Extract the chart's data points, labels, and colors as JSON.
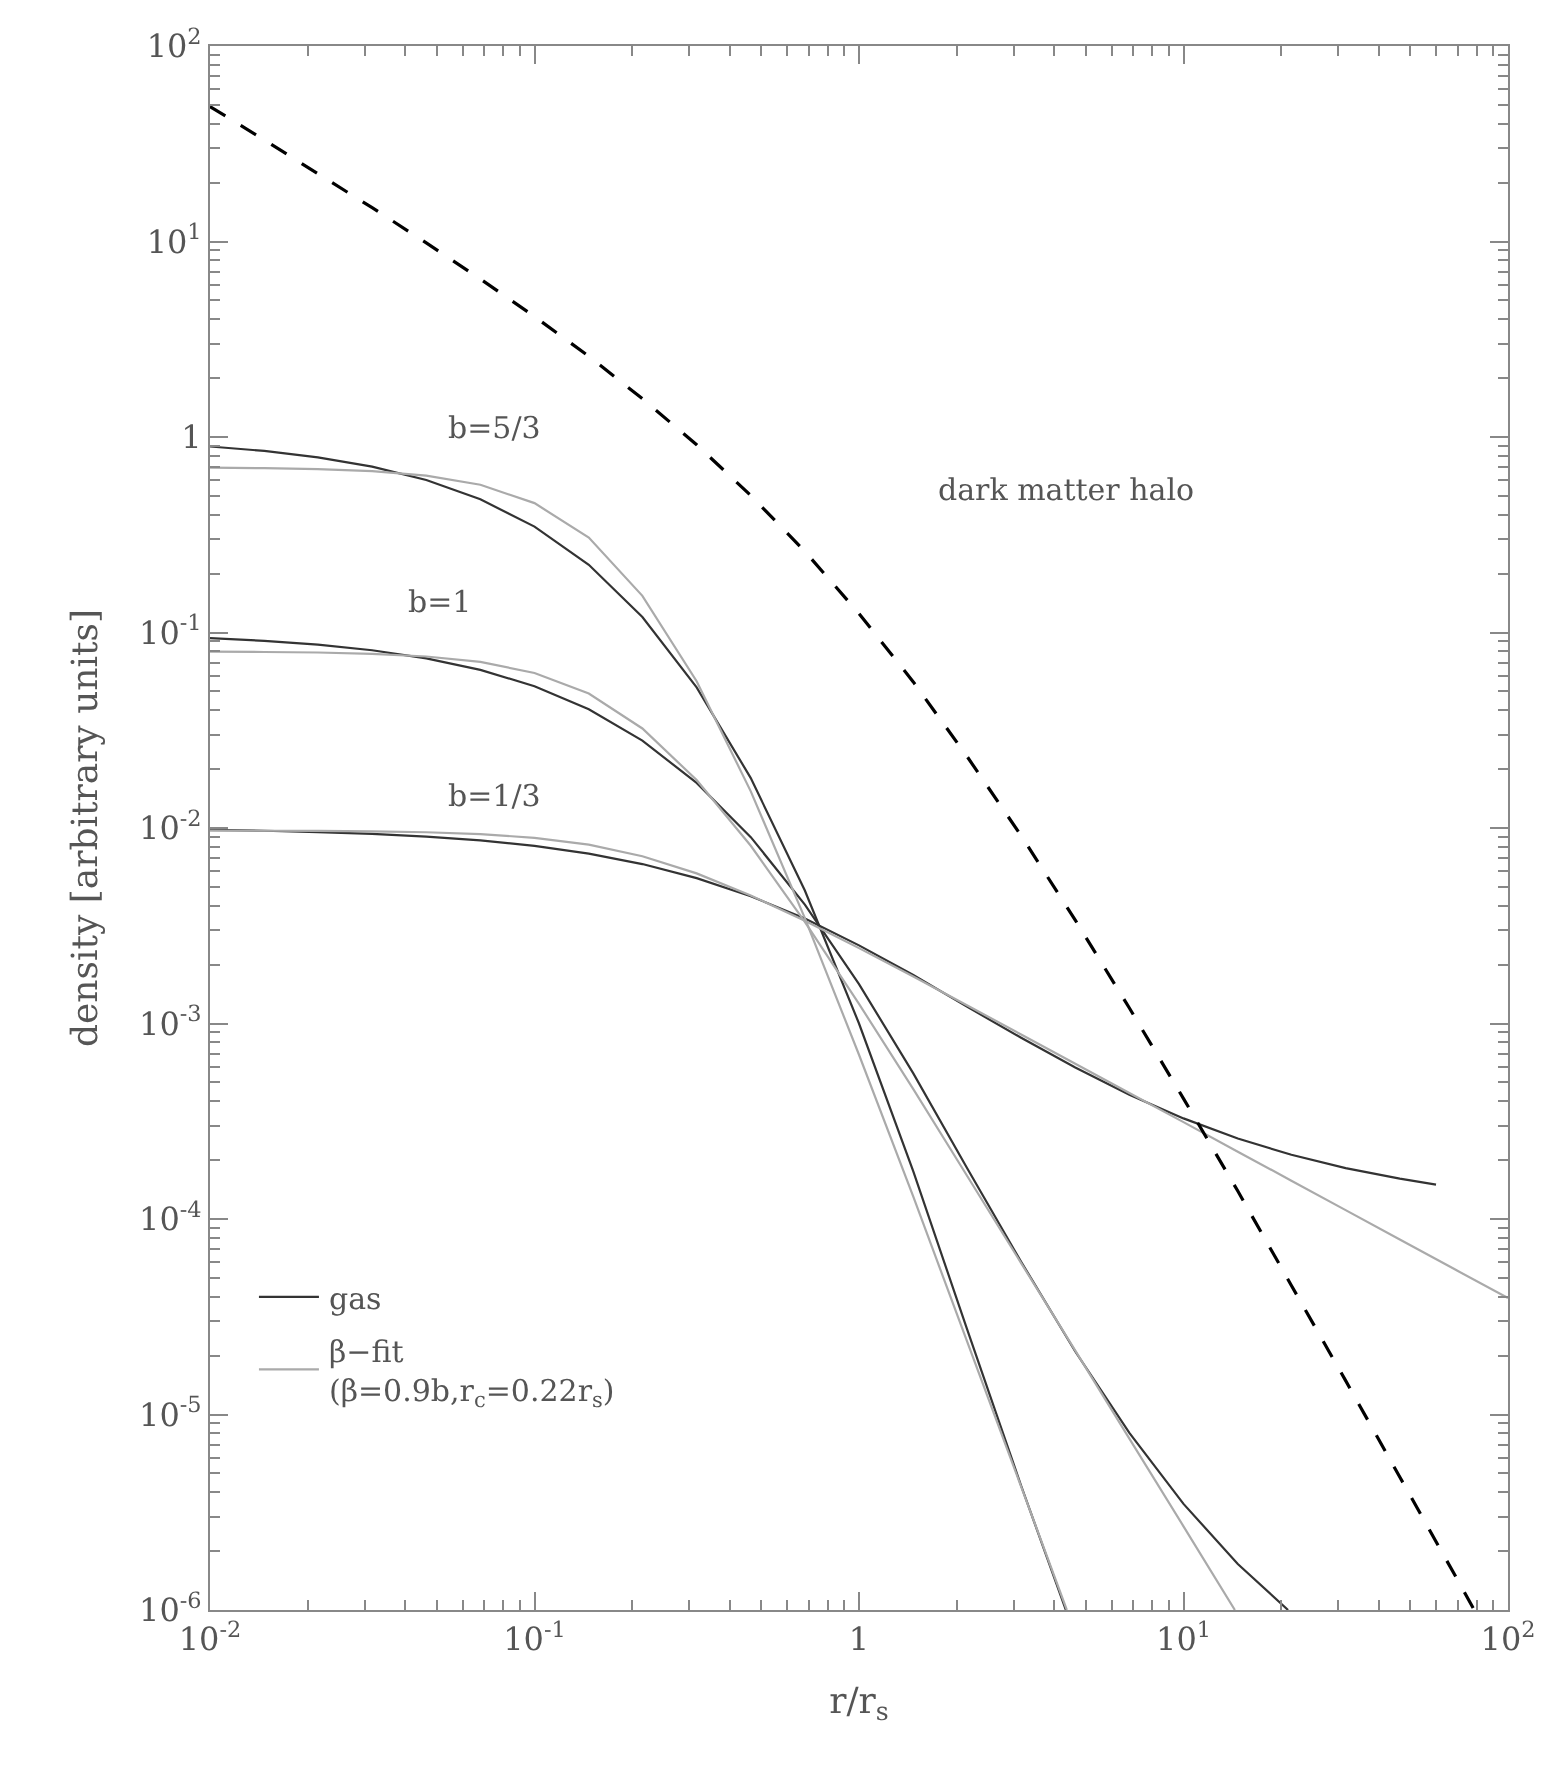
{
  "chart_data": {
    "type": "line",
    "xlabel": "r/r$_{s}$",
    "ylabel": "density [arbitrary units]",
    "log": "xy",
    "legend": "bottom left",
    "marker": "none",
    "xlim": [
      0.01,
      100
    ],
    "ylim": [
      1e-06,
      100
    ],
    "xticks": [
      {
        "value": 0.01,
        "label": "10$^{-2}$"
      },
      {
        "value": 0.1,
        "label": "10$^{-1}$"
      },
      1,
      {
        "value": 10,
        "label": "10$^{1}$"
      },
      {
        "value": 100,
        "label": "10$^{2}$"
      }
    ],
    "yticks": [
      {
        "value": 1e-06,
        "label": "10$^{-6}$"
      },
      {
        "value": 1e-05,
        "label": "10$^{-5}$"
      },
      {
        "value": 0.0001,
        "label": "10$^{-4}$"
      },
      {
        "value": 0.001,
        "label": "10$^{-3}$"
      },
      {
        "value": 0.01,
        "label": "10$^{-2}$"
      },
      {
        "value": 0.1,
        "label": "10$^{-1}$"
      },
      1,
      {
        "value": 10,
        "label": "10$^{1}$"
      },
      {
        "value": 100,
        "label": "10$^{2}$"
      }
    ],
    "annotations": [
      "b=5/3",
      "b=1",
      "b=1/3",
      "dark matter halo"
    ],
    "series": [
      {
        "name": "gas",
        "color": "#333333",
        "line_style": "solid",
        "x": [
          0.01,
          0.0147,
          0.0215,
          0.0316,
          0.0464,
          0.0681,
          0.1,
          0.147,
          0.215,
          0.316,
          0.464,
          0.681,
          1.0,
          1.47,
          2.15,
          3.16,
          4.34
        ],
        "values": [
          0.894,
          0.849,
          0.787,
          0.706,
          0.603,
          0.48,
          0.348,
          0.222,
          0.12,
          0.0524,
          0.018,
          0.00479,
          0.001,
          0.000175,
          2.75e-05,
          4.32e-06,
          1e-06
        ]
      },
      {
        "color": "#333333",
        "line_style": "solid",
        "x": [
          0.01,
          0.0147,
          0.0215,
          0.0316,
          0.0464,
          0.0681,
          0.1,
          0.147,
          0.215,
          0.316,
          0.464,
          0.681,
          1.0,
          1.47,
          2.15,
          3.16,
          4.64,
          6.81,
          10.0,
          14.7,
          21.0
        ],
        "values": [
          0.0935,
          0.0907,
          0.0866,
          0.0811,
          0.0738,
          0.0644,
          0.0531,
          0.0405,
          0.028,
          0.017,
          0.00898,
          0.00406,
          0.00159,
          0.000556,
          0.000183,
          6.04e-05,
          2.1e-05,
          8.06e-06,
          3.49e-06,
          1.72e-06,
          1e-06
        ]
      },
      {
        "color": "#333333",
        "line_style": "solid",
        "x": [
          0.01,
          0.0147,
          0.0215,
          0.0316,
          0.0464,
          0.0681,
          0.1,
          0.147,
          0.215,
          0.316,
          0.464,
          0.681,
          1.0,
          1.47,
          2.15,
          3.16,
          4.64,
          6.81,
          10.0,
          14.7,
          21.5,
          31.6,
          46.4,
          60
        ],
        "values": [
          0.00978,
          0.00968,
          0.00953,
          0.00933,
          0.00904,
          0.00864,
          0.0081,
          0.0074,
          0.00654,
          0.00554,
          0.00448,
          0.00344,
          0.00251,
          0.00177,
          0.00122,
          0.000845,
          0.000595,
          0.000432,
          0.000327,
          0.000258,
          0.000213,
          0.000182,
          0.000161,
          0.00015
        ]
      },
      {
        "name": "β−fit\n(β=0.9b,r$_{c}$=0.22r$_{s}$)",
        "color": "#aaaaaa",
        "line_style": "solid",
        "x": [
          0.01,
          0.0147,
          0.0215,
          0.0316,
          0.0464,
          0.0681,
          0.1,
          0.147,
          0.215,
          0.316,
          0.464,
          0.681,
          1.0,
          1.47,
          2.15,
          3.16,
          4.37
        ],
        "values": [
          0.697,
          0.693,
          0.685,
          0.669,
          0.635,
          0.57,
          0.459,
          0.306,
          0.154,
          0.0563,
          0.0154,
          0.00346,
          0.000692,
          0.00013,
          2.38e-05,
          4.28e-06,
          1e-06
        ]
      },
      {
        "color": "#aaaaaa",
        "line_style": "solid",
        "x": [
          0.01,
          0.0147,
          0.0215,
          0.0316,
          0.0464,
          0.0681,
          0.1,
          0.147,
          0.215,
          0.316,
          0.464,
          0.681,
          1.0,
          1.47,
          2.15,
          3.16,
          4.64,
          6.81,
          10.0,
          14.4
        ],
        "values": [
          0.0798,
          0.0795,
          0.079,
          0.0778,
          0.0754,
          0.0707,
          0.0621,
          0.0487,
          0.0323,
          0.0176,
          0.00811,
          0.00331,
          0.00126,
          0.000462,
          0.000167,
          5.95e-05,
          2.12e-05,
          7.53e-06,
          2.68e-06,
          1e-06
        ]
      },
      {
        "color": "#aaaaaa",
        "line_style": "solid",
        "x": [
          0.01,
          0.0147,
          0.0215,
          0.0316,
          0.0464,
          0.0681,
          0.1,
          0.147,
          0.215,
          0.316,
          0.464,
          0.681,
          1.0,
          1.47,
          2.15,
          3.16,
          4.64,
          6.81,
          10.0,
          14.7,
          21.5,
          31.6,
          46.4,
          68.1,
          100.0
        ],
        "values": [
          0.00969,
          0.00968,
          0.00966,
          0.00961,
          0.00951,
          0.00931,
          0.00891,
          0.00822,
          0.00717,
          0.00586,
          0.00452,
          0.00335,
          0.00243,
          0.00174,
          0.00124,
          0.000879,
          0.000623,
          0.000441,
          0.000313,
          0.000221,
          0.000157,
          0.000111,
          7.85e-05,
          5.56e-05,
          3.94e-05
        ]
      },
      {
        "color": "#000000",
        "line_style": "dashed",
        "x": [
          0.01,
          0.0147,
          0.0215,
          0.0316,
          0.0464,
          0.0681,
          0.1,
          0.147,
          0.215,
          0.316,
          0.464,
          0.681,
          1.0,
          1.47,
          2.15,
          3.16,
          4.64,
          6.81,
          10.0,
          14.7,
          21.5,
          31.6,
          46.4,
          68.1,
          78.7
        ],
        "values": [
          49.0,
          33.1,
          22.2,
          14.9,
          9.84,
          6.43,
          4.13,
          2.59,
          1.57,
          0.913,
          0.502,
          0.26,
          0.125,
          0.0559,
          0.0233,
          0.00913,
          0.00338,
          0.0012,
          0.000413,
          0.000139,
          4.57e-05,
          1.49e-05,
          4.79e-06,
          1.54e-06,
          1e-06
        ]
      }
    ]
  }
}
